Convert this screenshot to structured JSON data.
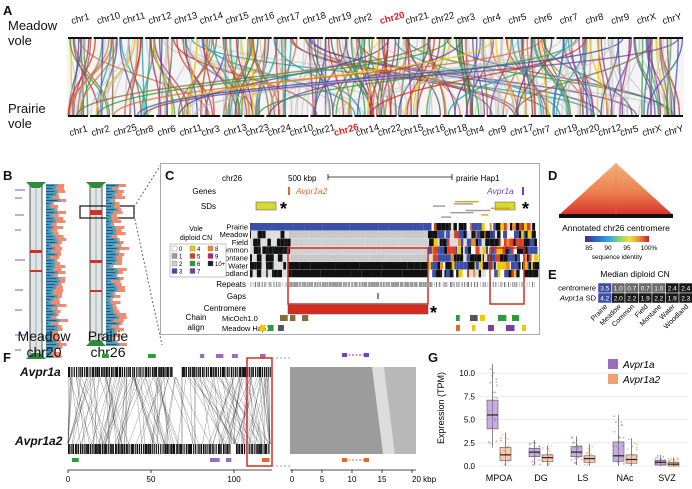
{
  "panel_letters": [
    "A",
    "B",
    "C",
    "D",
    "E",
    "F",
    "G"
  ],
  "panelA": {
    "top_species": "Meadow\nvole",
    "bottom_species": "Prairie\nvole",
    "top_chroms": [
      "chr1",
      "chr10",
      "chr11",
      "chr12",
      "chr13",
      "chr14",
      "chr15",
      "chr16",
      "chr17",
      "chr18",
      "chr19",
      "chr2",
      "chr20",
      "chr21",
      "chr22",
      "chr3",
      "chr4",
      "chr5",
      "chr6",
      "chr7",
      "chr8",
      "chr9",
      "chrX",
      "chrY"
    ],
    "bottom_chroms": [
      "chr1",
      "chr2",
      "chr25",
      "chr8",
      "chr6",
      "chr11",
      "chr3",
      "chr13",
      "chr23",
      "chr24",
      "chr10",
      "chr21",
      "chr26",
      "chr14",
      "chr22",
      "chr15",
      "chr16",
      "chr18",
      "chr4",
      "chr9",
      "chr17",
      "chr7",
      "chr19",
      "chr20",
      "chr12",
      "chr5",
      "chrX",
      "chrY"
    ],
    "highlight_top": "chr20",
    "highlight_bottom": "chr26",
    "highlight_color": "#e0201b"
  },
  "panelB": {
    "left_label": "Meadow\nchr20",
    "right_label": "Prairie\nchr26"
  },
  "panelC": {
    "chrom": "chr26",
    "scale": "500 kbp",
    "assembly": "prairie Hap1",
    "genes_label": "Genes",
    "gene1": "Avpr1a2",
    "gene2": "Avpr1a",
    "sds_label": "SDs",
    "track_names": [
      "Prairie",
      "Meadow",
      "Field",
      "Common",
      "Montane",
      "Water",
      "Woodland"
    ],
    "legend_title": "Vole\ndiploid CN",
    "legend_items": [
      {
        "n": "0",
        "color": "#ffffff"
      },
      {
        "n": "1",
        "color": "#9a9a9a"
      },
      {
        "n": "2",
        "color": "#d0d0d0"
      },
      {
        "n": "3",
        "color": "#3b4fa8"
      },
      {
        "n": "4",
        "color": "#f0c800"
      },
      {
        "n": "5",
        "color": "#e23c1f"
      },
      {
        "n": "6",
        "color": "#2a9d3a"
      },
      {
        "n": "7",
        "color": "#7a3ea0"
      },
      {
        "n": "8",
        "color": "#f08a24"
      },
      {
        "n": "9",
        "color": "#c21d6b"
      },
      {
        "n": "10+",
        "color": "#1b1b1b"
      }
    ],
    "repeats_label": "Repeats",
    "gaps_label": "Gaps",
    "centromere_label": "Centromere",
    "chain_label": "Chain\nalign",
    "chain_tracks": [
      "MicOch1.0",
      "Meadow Hap1"
    ]
  },
  "panelD": {
    "caption": "Annotated chr26 centromere",
    "colorbar_ticks": [
      "85",
      "90",
      "95",
      "100%"
    ],
    "colorbar_label": "sequence identity"
  },
  "panelE": {
    "title": "Median diploid CN",
    "rows": [
      {
        "label": "centromere",
        "values": [
          "3.5",
          "1.0",
          "0.7",
          "0.7",
          "1.0",
          "2.4",
          "2.4"
        ]
      },
      {
        "label": "Avpr1a SD",
        "values": [
          "4.2",
          "2.0",
          "2.2",
          "1.9",
          "2.2",
          "1.9",
          "2.3"
        ]
      }
    ],
    "columns": [
      "Prairie",
      "Meadow",
      "Common",
      "Field",
      "Montane",
      "Water",
      "Woodland"
    ]
  },
  "panelF": {
    "top_label": "Avpr1a",
    "bottom_label": "Avpr1a2",
    "left_axis_ticks": [
      "0",
      "50",
      "100"
    ],
    "right_axis_ticks": [
      "0",
      "5",
      "10",
      "15",
      "20 kbp"
    ]
  },
  "chart_data": {
    "type": "box",
    "ylabel": "Expression (TPM)",
    "ylim": [
      0,
      12.5
    ],
    "yticks": [
      "0.0",
      "2.5",
      "5.0",
      "7.5",
      "10.0"
    ],
    "categories": [
      "MPOA",
      "DG",
      "LS",
      "NAc",
      "SVZ"
    ],
    "series": [
      {
        "name": "Avpr1a",
        "color": "#9a6cc0",
        "stats": [
          {
            "q1": 4.0,
            "med": 5.5,
            "q3": 7.1,
            "lo": 2.0,
            "hi": 11.0
          },
          {
            "q1": 1.0,
            "med": 1.5,
            "q3": 1.9,
            "lo": 0.1,
            "hi": 2.8
          },
          {
            "q1": 1.0,
            "med": 1.5,
            "q3": 2.1,
            "lo": 0.1,
            "hi": 3.2
          },
          {
            "q1": 0.5,
            "med": 1.1,
            "q3": 2.6,
            "lo": 0.0,
            "hi": 5.5
          },
          {
            "q1": 0.1,
            "med": 0.4,
            "q3": 0.6,
            "lo": 0.0,
            "hi": 1.2
          }
        ]
      },
      {
        "name": "Avpr1a2",
        "color": "#f0a070",
        "stats": [
          {
            "q1": 0.6,
            "med": 1.2,
            "q3": 2.0,
            "lo": 0.0,
            "hi": 3.6
          },
          {
            "q1": 0.5,
            "med": 0.9,
            "q3": 1.2,
            "lo": 0.0,
            "hi": 2.2
          },
          {
            "q1": 0.4,
            "med": 0.8,
            "q3": 1.1,
            "lo": 0.0,
            "hi": 2.4
          },
          {
            "q1": 0.3,
            "med": 0.7,
            "q3": 1.2,
            "lo": 0.0,
            "hi": 3.0
          },
          {
            "q1": 0.0,
            "med": 0.2,
            "q3": 0.4,
            "lo": 0.0,
            "hi": 0.9
          }
        ]
      }
    ]
  }
}
